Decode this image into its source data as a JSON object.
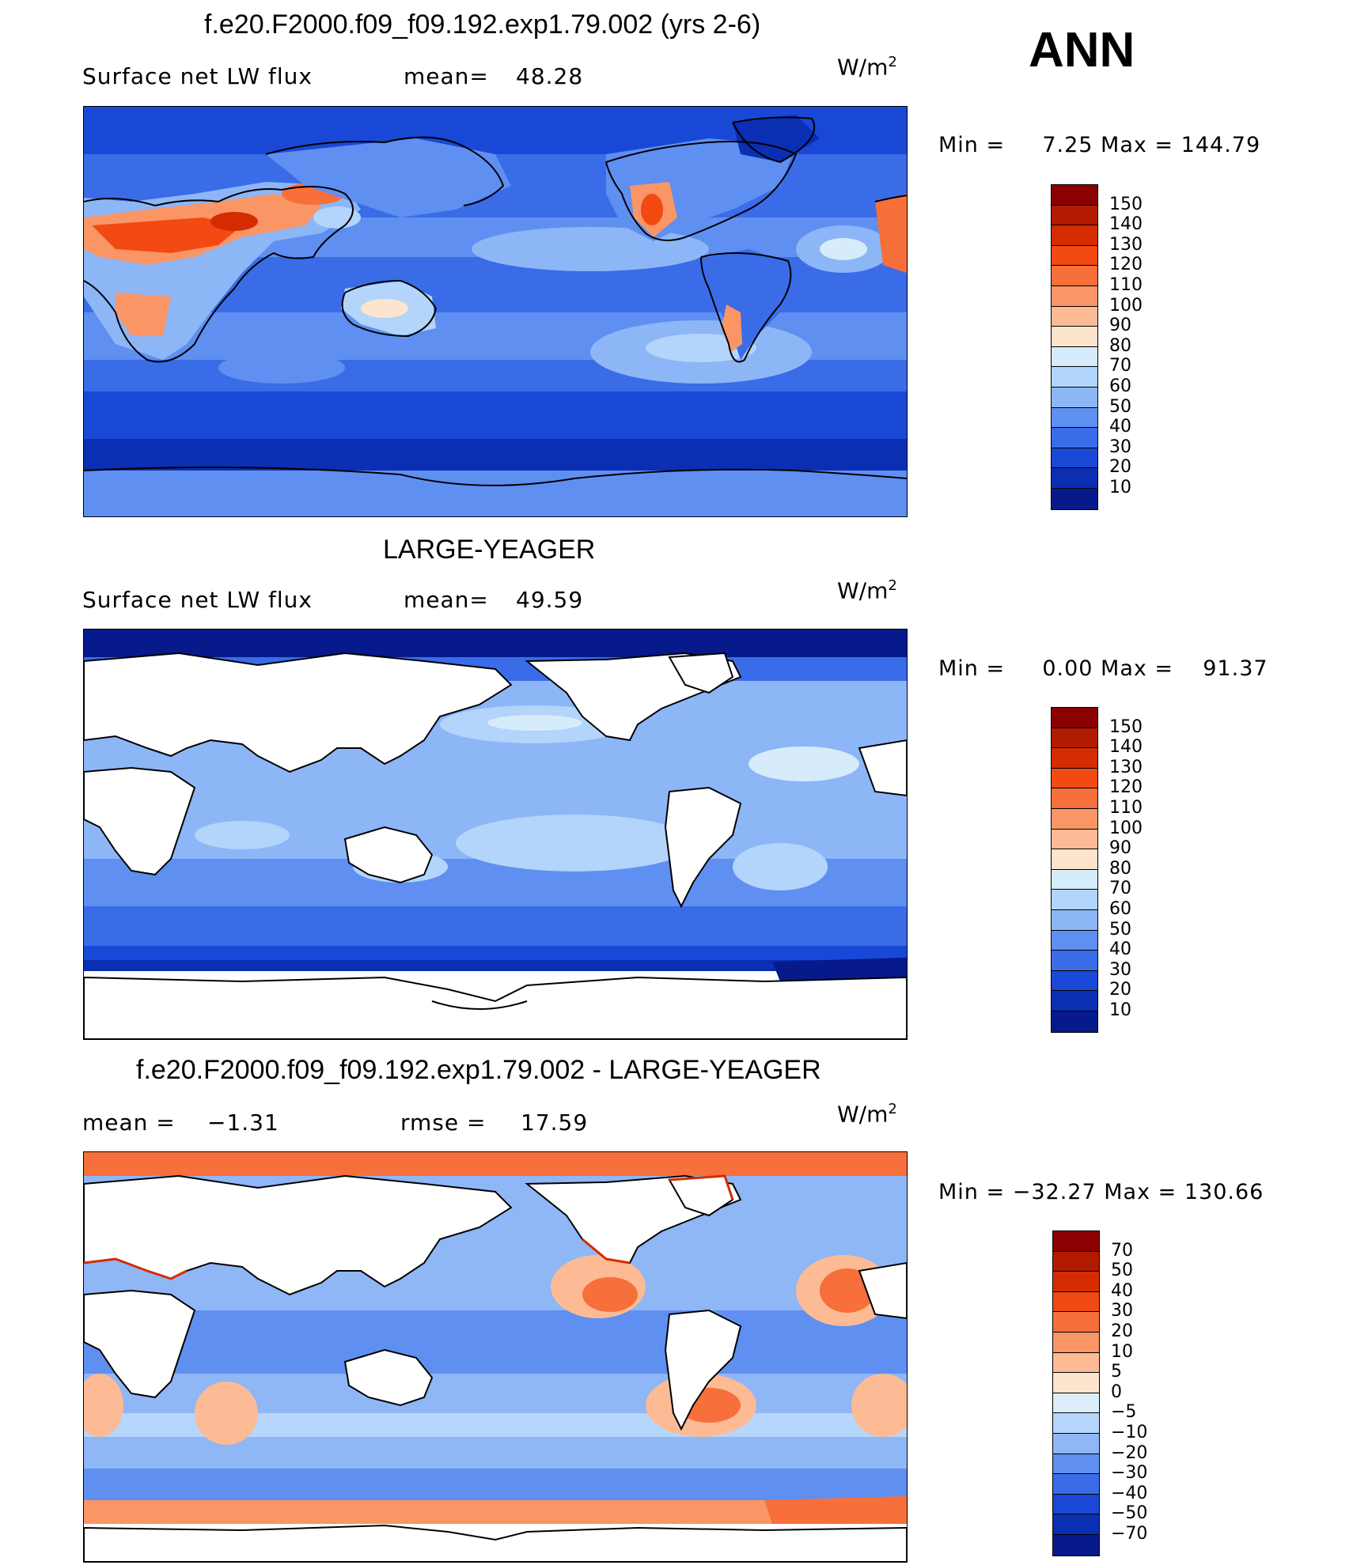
{
  "season": "ANN",
  "units": {
    "base": "W/m",
    "exp": "2"
  },
  "panels": [
    {
      "title": "f.e20.F2000.f09_f09.192.exp1.79.002 (yrs 2-6)",
      "left_text": "Surface net LW flux",
      "mean_label": "mean=",
      "mean_value": "48.28",
      "min_label": "Min =",
      "min_value": "7.25",
      "max_label": "Max =",
      "max_value": "144.79",
      "colorbar": {
        "labels": [
          "150",
          "140",
          "130",
          "120",
          "110",
          "100",
          "90",
          "80",
          "70",
          "60",
          "50",
          "40",
          "30",
          "20",
          "10"
        ],
        "colors": [
          "#8b0000",
          "#b31b00",
          "#d42c00",
          "#f24a12",
          "#f76f3a",
          "#fa9566",
          "#fcbb94",
          "#fde4cc",
          "#d6ecfa",
          "#b3d4fb",
          "#8db6f7",
          "#5f8ff0",
          "#3a6ce8",
          "#1a48d6",
          "#0a2fb3",
          "#061a8c"
        ]
      }
    },
    {
      "title": "LARGE-YEAGER",
      "left_text": "Surface net LW flux",
      "mean_label": "mean=",
      "mean_value": "49.59",
      "min_label": "Min =",
      "min_value": "0.00",
      "max_label": "Max =",
      "max_value": "91.37",
      "colorbar": {
        "labels": [
          "150",
          "140",
          "130",
          "120",
          "110",
          "100",
          "90",
          "80",
          "70",
          "60",
          "50",
          "40",
          "30",
          "20",
          "10"
        ],
        "colors": [
          "#8b0000",
          "#b31b00",
          "#d42c00",
          "#f24a12",
          "#f76f3a",
          "#fa9566",
          "#fcbb94",
          "#fde4cc",
          "#d6ecfa",
          "#b3d4fb",
          "#8db6f7",
          "#5f8ff0",
          "#3a6ce8",
          "#1a48d6",
          "#0a2fb3",
          "#061a8c"
        ]
      }
    },
    {
      "title": "f.e20.F2000.f09_f09.192.exp1.79.002 - LARGE-YEAGER",
      "mean_label": "mean =",
      "mean_value": "−1.31",
      "rmse_label": "rmse =",
      "rmse_value": "17.59",
      "min_label": "Min =",
      "min_value": "−32.27",
      "max_label": "Max =",
      "max_value": "130.66",
      "colorbar": {
        "labels": [
          "70",
          "50",
          "40",
          "30",
          "20",
          "10",
          "5",
          "0",
          "−5",
          "−10",
          "−20",
          "−30",
          "−40",
          "−50",
          "−70"
        ],
        "colors": [
          "#8b0000",
          "#b31b00",
          "#d42c00",
          "#f04a14",
          "#f76f3a",
          "#fa9566",
          "#fcbb94",
          "#fde4cc",
          "#dceefc",
          "#b7d6fb",
          "#8fb6f5",
          "#5f8ff0",
          "#3a6ce8",
          "#1a48d6",
          "#0a2fb3",
          "#061a8c"
        ]
      }
    }
  ]
}
